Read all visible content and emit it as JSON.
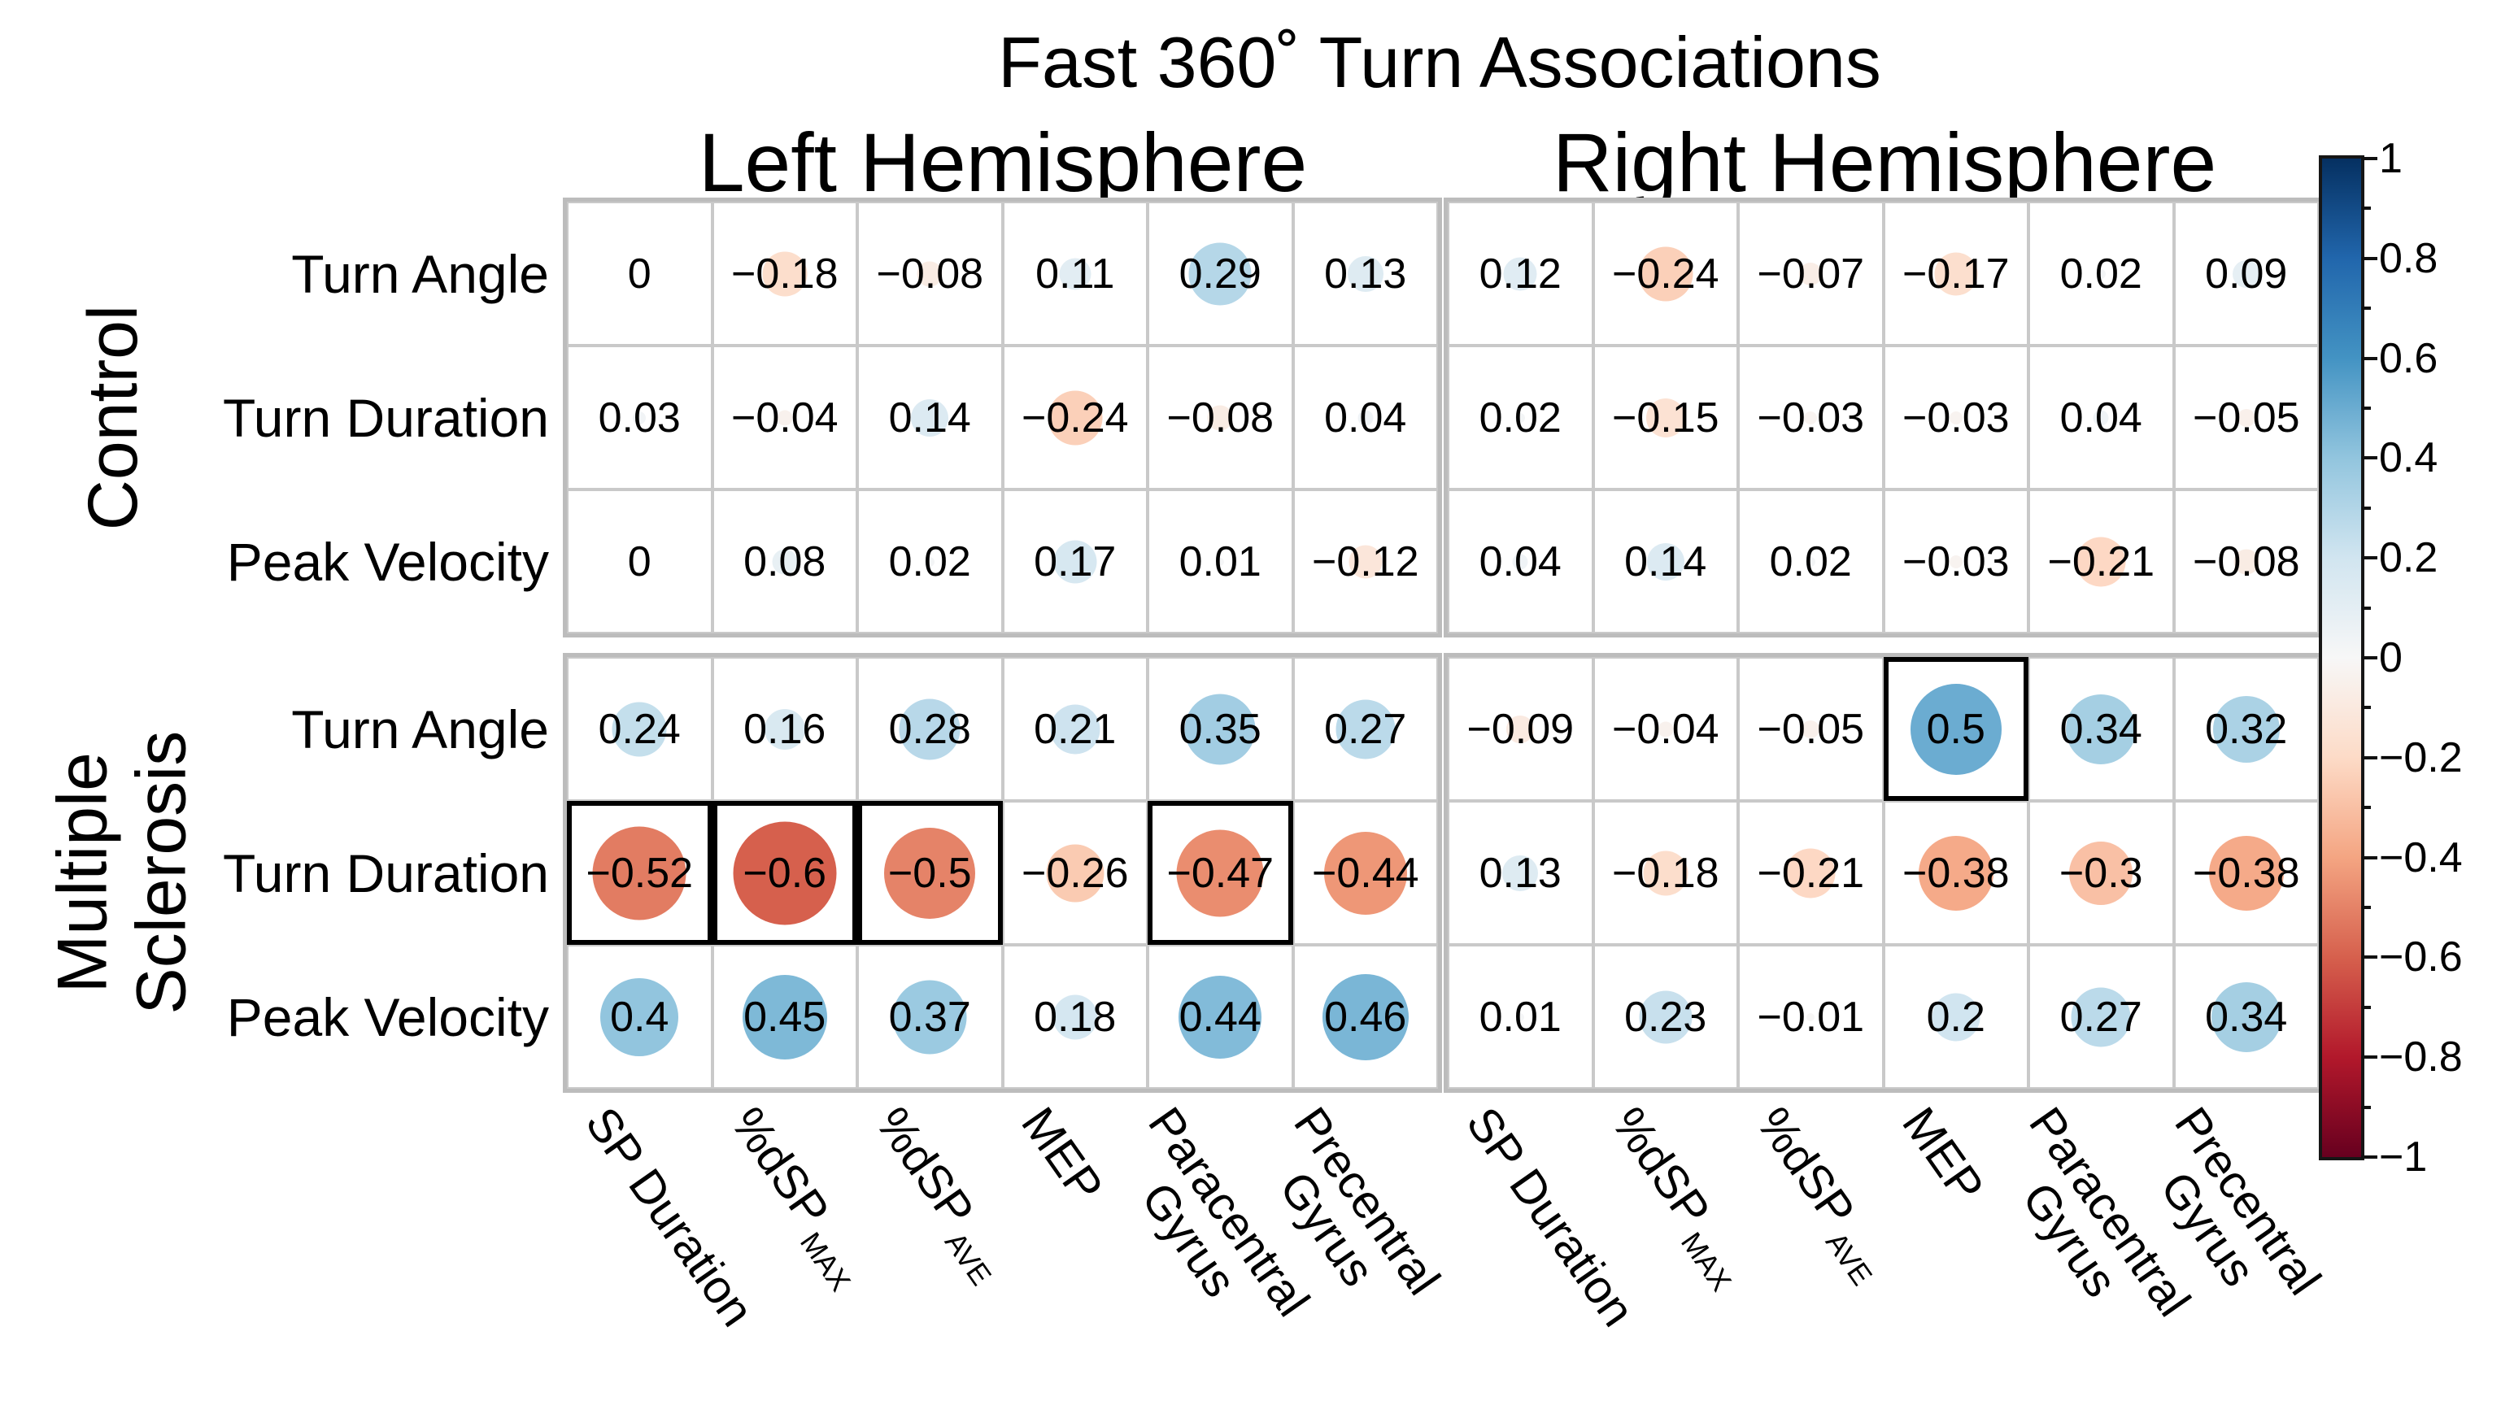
{
  "chart_data": {
    "type": "bubble-correlation-matrix",
    "title": "Fast 360˚ Turn Associations",
    "panels": [
      "Left Hemisphere",
      "Right Hemisphere"
    ],
    "row_groups": [
      {
        "key": "control",
        "lines": [
          "Control"
        ],
        "rows": [
          "Turn Angle",
          "Turn Duration",
          "Peak Velocity"
        ]
      },
      {
        "key": "multiple_sclerosis",
        "lines": [
          "Multiple",
          "Sclerosis"
        ],
        "rows": [
          "Turn Angle",
          "Turn Duration",
          "Peak Velocity"
        ]
      }
    ],
    "columns": [
      {
        "main": "SP Duration",
        "sub": "",
        "line2": ""
      },
      {
        "main": "%dSP",
        "sub": "MAX",
        "line2": ""
      },
      {
        "main": "%dSP",
        "sub": "AVE",
        "line2": ""
      },
      {
        "main": "MEP",
        "sub": "",
        "line2": ""
      },
      {
        "main": "Paracentral",
        "sub": "",
        "line2": "Gyrus"
      },
      {
        "main": "Precentral",
        "sub": "",
        "line2": "Gyrus"
      }
    ],
    "values": {
      "control": {
        "left": [
          [
            0,
            -0.18,
            -0.08,
            0.11,
            0.29,
            0.13
          ],
          [
            0.03,
            -0.04,
            0.14,
            -0.24,
            -0.08,
            0.04
          ],
          [
            0,
            0.08,
            0.02,
            0.17,
            0.01,
            -0.12
          ]
        ],
        "right": [
          [
            0.12,
            -0.24,
            -0.07,
            -0.17,
            0.02,
            0.09
          ],
          [
            0.02,
            -0.15,
            -0.03,
            -0.03,
            0.04,
            -0.05
          ],
          [
            0.04,
            0.14,
            0.02,
            -0.03,
            -0.21,
            -0.08
          ]
        ]
      },
      "multiple_sclerosis": {
        "left": [
          [
            0.24,
            0.16,
            0.28,
            0.21,
            0.35,
            0.27
          ],
          [
            -0.52,
            -0.6,
            -0.5,
            -0.26,
            -0.47,
            -0.44
          ],
          [
            0.4,
            0.45,
            0.37,
            0.18,
            0.44,
            0.46
          ]
        ],
        "right": [
          [
            -0.09,
            -0.04,
            -0.05,
            0.5,
            0.34,
            0.32
          ],
          [
            0.13,
            -0.18,
            -0.21,
            -0.38,
            -0.3,
            -0.38
          ],
          [
            0.01,
            0.23,
            -0.01,
            0.2,
            0.27,
            0.34
          ]
        ]
      }
    },
    "highlighted": [
      {
        "group": "multiple_sclerosis",
        "hemi": "left",
        "row": 1,
        "col": 0
      },
      {
        "group": "multiple_sclerosis",
        "hemi": "left",
        "row": 1,
        "col": 1
      },
      {
        "group": "multiple_sclerosis",
        "hemi": "left",
        "row": 1,
        "col": 2
      },
      {
        "group": "multiple_sclerosis",
        "hemi": "left",
        "row": 1,
        "col": 4
      },
      {
        "group": "multiple_sclerosis",
        "hemi": "right",
        "row": 0,
        "col": 3
      }
    ],
    "colorbar": {
      "tick_labels": [
        "1",
        "0.8",
        "0.6",
        "0.4",
        "0.2",
        "0",
        "−0.2",
        "−0.4",
        "−0.6",
        "−0.8",
        "−1"
      ],
      "tick_values": [
        1,
        0.8,
        0.6,
        0.4,
        0.2,
        0,
        -0.2,
        -0.4,
        -0.6,
        -0.8,
        -1
      ],
      "range": [
        -1,
        1
      ]
    },
    "colormap": {
      "name": "RdBu",
      "values": [
        -1,
        -0.8,
        -0.6,
        -0.4,
        -0.2,
        0,
        0.2,
        0.4,
        0.6,
        0.8,
        1
      ],
      "colors": [
        "#67001f",
        "#b2182b",
        "#d6604d",
        "#f4a582",
        "#fddbc7",
        "#f7f7f7",
        "#d1e5f0",
        "#92c5de",
        "#4393c3",
        "#2166ac",
        "#053061"
      ]
    },
    "styles": {
      "grid_color": "#c9c9c9",
      "panel_border_color": "#bcbcbc",
      "highlight_color": "#000000",
      "text_color": "#000000",
      "background": "#ffffff"
    }
  }
}
